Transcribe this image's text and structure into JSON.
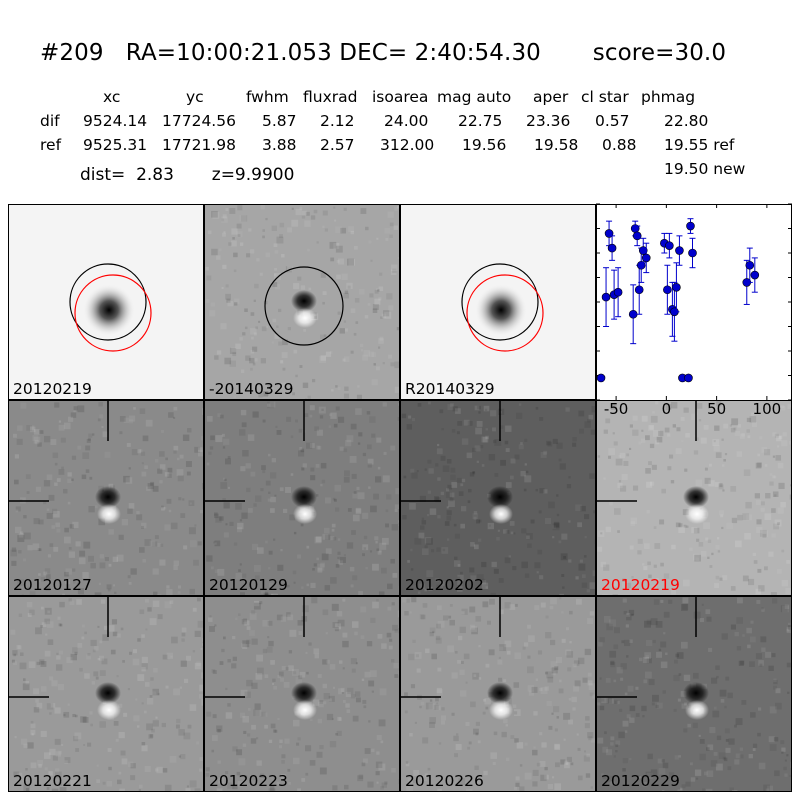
{
  "header": {
    "title": "#209   RA=10:00:21.053 DEC= 2:40:54.30       score=30.0"
  },
  "table": {
    "columns": [
      "xc",
      "yc",
      "fwhm",
      "fluxrad",
      "isoarea",
      "mag auto",
      "aper",
      "cl star",
      "phmag"
    ],
    "rows": [
      {
        "label": "dif",
        "values": [
          "9524.14",
          "17724.56",
          "5.87",
          "2.12",
          "24.00",
          "22.75",
          "23.36",
          "0.57",
          "22.80"
        ]
      },
      {
        "label": "ref",
        "values": [
          "9525.31",
          "17721.98",
          "3.88",
          "2.57",
          "312.00",
          "19.56",
          "19.58",
          "0.88",
          "19.55 ref"
        ]
      }
    ],
    "phmag_new": "19.50 new",
    "dist_text": "dist=  2.83       z=9.9900"
  },
  "panels": [
    {
      "label": "20120219",
      "kind": "ref",
      "label_color": "#000000"
    },
    {
      "label": "-20140329",
      "kind": "diffcircle",
      "label_color": "#000000"
    },
    {
      "label": "R20140329",
      "kind": "ref",
      "label_color": "#000000"
    },
    {
      "label": "20120127",
      "kind": "diff",
      "label_color": "#000000"
    },
    {
      "label": "20120129",
      "kind": "diff",
      "label_color": "#000000"
    },
    {
      "label": "20120202",
      "kind": "diff",
      "label_color": "#000000"
    },
    {
      "label": "20120219",
      "kind": "diff",
      "label_color": "#ff0000"
    },
    {
      "label": "20120221",
      "kind": "diff",
      "label_color": "#000000"
    },
    {
      "label": "20120223",
      "kind": "diff",
      "label_color": "#000000"
    },
    {
      "label": "20120226",
      "kind": "diff",
      "label_color": "#000000"
    },
    {
      "label": "20120229",
      "kind": "diff",
      "label_color": "#000000"
    }
  ],
  "chart_data": {
    "type": "scatter",
    "xlim": [
      -70,
      125
    ],
    "ylim": [
      26.0,
      22.0
    ],
    "y_inverted": true,
    "xticks": [
      "-50",
      "0",
      "50",
      "100"
    ],
    "yticks": [
      "22.0",
      "22.5",
      "23.0",
      "23.5",
      "24.0",
      "24.5",
      "25.0",
      "25.5",
      "26.0"
    ],
    "marker_color": "#0000cc",
    "points": [
      {
        "x": -65,
        "y": 25.55,
        "err": 0
      },
      {
        "x": -60,
        "y": 23.9,
        "err": 0.6
      },
      {
        "x": -57,
        "y": 22.6,
        "err": 0.25
      },
      {
        "x": -54,
        "y": 22.9,
        "err": 0.25
      },
      {
        "x": -52,
        "y": 23.85,
        "err": 0.5
      },
      {
        "x": -48,
        "y": 23.8,
        "err": 0.5
      },
      {
        "x": -33,
        "y": 24.25,
        "err": 0.6
      },
      {
        "x": -31,
        "y": 22.5,
        "err": 0.15
      },
      {
        "x": -29,
        "y": 22.65,
        "err": 0.2
      },
      {
        "x": -27,
        "y": 23.75,
        "err": 0.5
      },
      {
        "x": -25,
        "y": 23.25,
        "err": 0.35
      },
      {
        "x": -23,
        "y": 22.95,
        "err": 0.25
      },
      {
        "x": -20,
        "y": 23.1,
        "err": 0.3
      },
      {
        "x": -2,
        "y": 22.8,
        "err": 0.2
      },
      {
        "x": 1,
        "y": 23.75,
        "err": 0.5
      },
      {
        "x": 3,
        "y": 22.85,
        "err": 0.25
      },
      {
        "x": 6,
        "y": 24.15,
        "err": 0.55
      },
      {
        "x": 8,
        "y": 24.2,
        "err": 0.6
      },
      {
        "x": 10,
        "y": 23.7,
        "err": 0.5
      },
      {
        "x": 13,
        "y": 22.95,
        "err": 0.3
      },
      {
        "x": 16,
        "y": 25.55,
        "err": 0
      },
      {
        "x": 22,
        "y": 25.55,
        "err": 0
      },
      {
        "x": 24,
        "y": 22.45,
        "err": 0.15
      },
      {
        "x": 26,
        "y": 23.0,
        "err": 0.3
      },
      {
        "x": 80,
        "y": 23.6,
        "err": 0.45
      },
      {
        "x": 83,
        "y": 23.25,
        "err": 0.35
      },
      {
        "x": 88,
        "y": 23.45,
        "err": 0.35
      }
    ]
  }
}
